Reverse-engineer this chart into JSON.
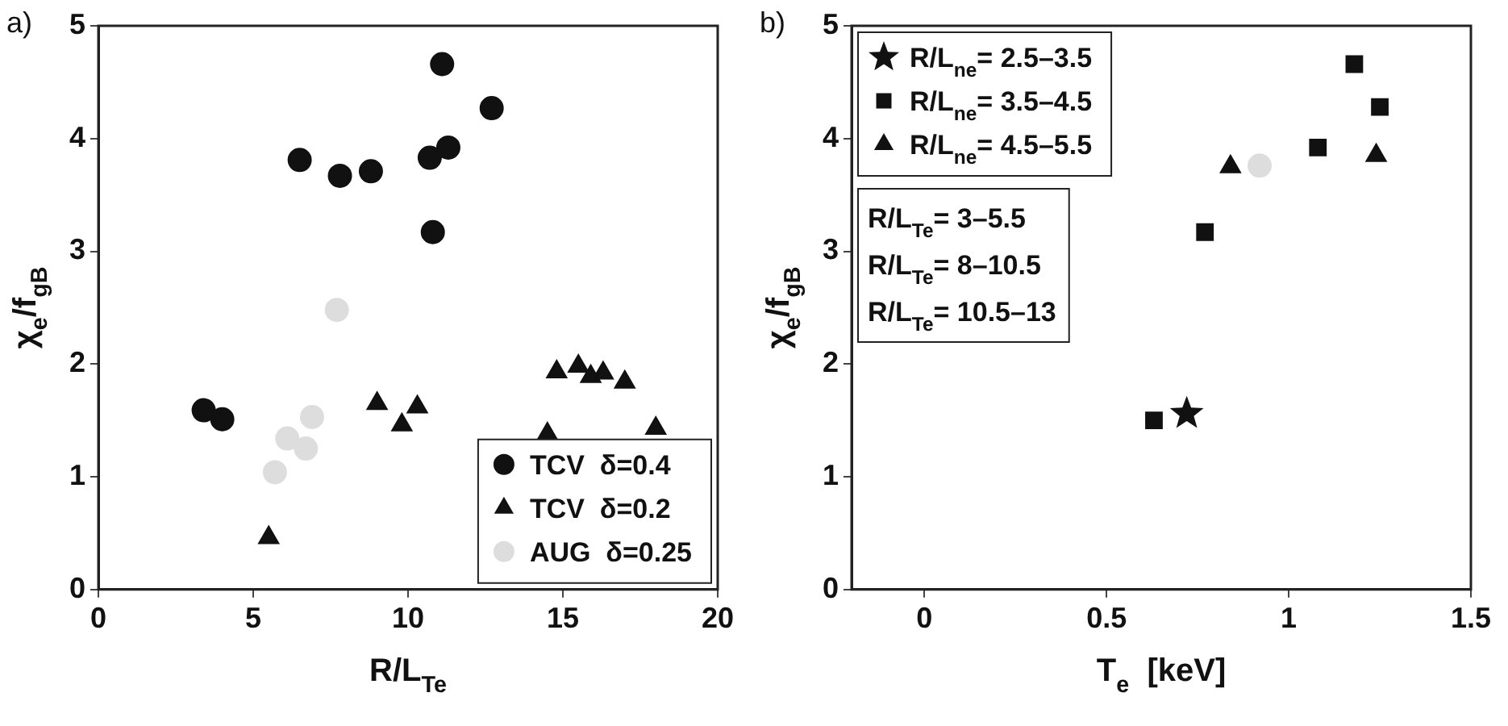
{
  "chart_data": [
    {
      "type": "scatter",
      "title": "a)",
      "xlabel": "R/L$_{Te}$",
      "ylabel": "χ$_{e}$/f$_{gB}$",
      "xlim": [
        0,
        20
      ],
      "ylim": [
        0,
        5
      ],
      "xticks": [
        0,
        5,
        10,
        15,
        20
      ],
      "yticks": [
        0,
        1,
        2,
        3,
        4,
        5
      ],
      "grid": false,
      "legend": "bottom right",
      "series": [
        {
          "name": "TCV  δ=0.4",
          "color": "#111111",
          "marker": "circle",
          "x": [
            3.4,
            4.0,
            6.5,
            7.8,
            8.8,
            10.7,
            11.3,
            11.1,
            10.8,
            12.7
          ],
          "values": [
            1.59,
            1.51,
            3.81,
            3.67,
            3.71,
            3.83,
            3.92,
            4.66,
            3.17,
            4.27
          ]
        },
        {
          "name": "TCV  δ=0.2",
          "color": "#111111",
          "marker": "triangle",
          "x": [
            5.5,
            9.0,
            9.8,
            10.3,
            14.5,
            14.8,
            15.5,
            15.9,
            16.3,
            17.0,
            18.0
          ],
          "values": [
            0.46,
            1.65,
            1.46,
            1.62,
            1.38,
            1.93,
            1.98,
            1.89,
            1.92,
            1.84,
            1.43
          ]
        },
        {
          "name": "AUG  δ=0.25",
          "color": "#dddddd",
          "marker": "circle",
          "x": [
            7.7,
            6.9,
            6.1,
            6.7,
            5.7
          ],
          "values": [
            2.48,
            1.53,
            1.34,
            1.25,
            1.04
          ]
        }
      ]
    },
    {
      "type": "scatter",
      "title": "b)",
      "xlabel": "T$_{e}$  [keV]",
      "ylabel": "χ$_{e}$/f$_{gB}$",
      "xlim": [
        -0.2,
        1.5
      ],
      "ylim": [
        0,
        5
      ],
      "xticks": [
        0,
        0.5,
        1,
        1.5
      ],
      "yticks": [
        0,
        1,
        2,
        3,
        4,
        5
      ],
      "grid": false,
      "legend": "top left",
      "annotations": [
        "R/L$_{Te}$= 3–5.5",
        "R/L$_{Te}$= 8–10.5",
        "R/L$_{Te}$= 10.5–13"
      ],
      "series": [
        {
          "name": "R/L$_{ne}$= 2.5–3.5",
          "color": "#111111",
          "marker": "star",
          "x": [
            0.72
          ],
          "values": [
            1.56
          ]
        },
        {
          "name": "R/L$_{ne}$= 3.5–4.5",
          "color": "#111111",
          "marker": "square",
          "x": [
            0.63,
            0.77,
            1.08,
            1.18,
            1.25
          ],
          "values": [
            1.5,
            3.17,
            3.92,
            4.66,
            4.28
          ]
        },
        {
          "name": "R/L$_{ne}$= 4.5–5.5",
          "color": "#111111",
          "marker": "triangle",
          "x": [
            0.84,
            1.24
          ],
          "values": [
            3.75,
            3.85
          ]
        },
        {
          "color": "#dddddd",
          "marker": "circle",
          "x": [
            0.92
          ],
          "values": [
            3.76
          ]
        }
      ]
    }
  ]
}
